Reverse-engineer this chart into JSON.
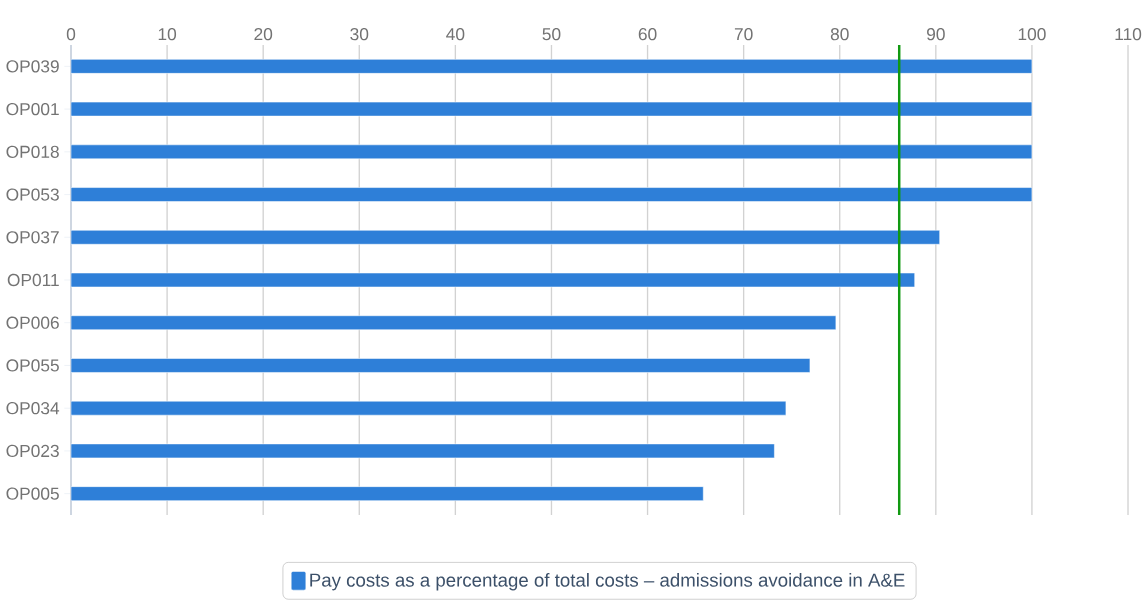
{
  "chart_data": {
    "type": "bar",
    "orientation": "horizontal",
    "categories": [
      "OP039",
      "OP001",
      "OP018",
      "OP053",
      "OP037",
      "OP011",
      "OP006",
      "OP055",
      "OP034",
      "OP023",
      "OP005"
    ],
    "series": [
      {
        "name": "Pay costs as a percentage of total costs – admissions avoidance in A&E",
        "color": "#2e7fd8",
        "values": [
          100,
          100,
          100,
          100,
          90.4,
          87.8,
          79.6,
          76.9,
          74.4,
          73.2,
          65.8
        ]
      }
    ],
    "xlim": [
      0,
      110
    ],
    "xticks": [
      0,
      10,
      20,
      30,
      40,
      50,
      60,
      70,
      80,
      90,
      100,
      110
    ],
    "grid": "x",
    "legend": "bottom",
    "ref_lines": [
      {
        "axis": "x",
        "value": 86.2,
        "color": "#119911"
      }
    ]
  }
}
